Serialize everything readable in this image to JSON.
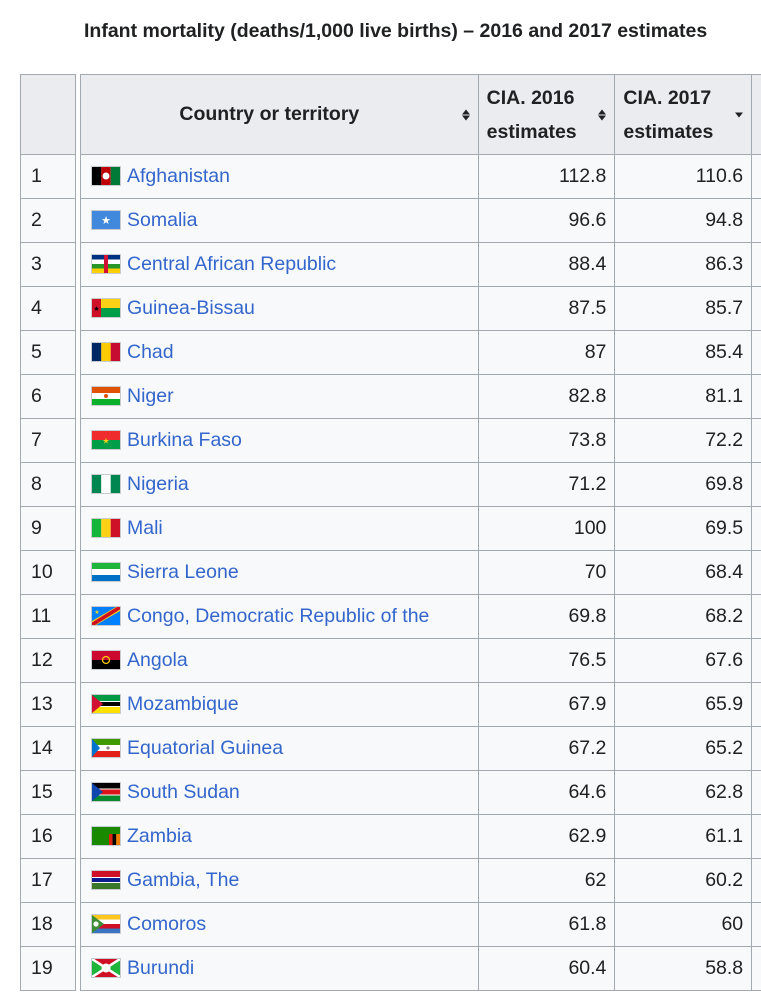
{
  "caption": "Infant mortality (deaths/1,000 live births) – 2016 and 2017 estimates",
  "headers": {
    "country": "Country or territory",
    "c2016_line1": "CIA. 2016",
    "c2016_line2": "estimates",
    "c2017_line1": "CIA. 2017",
    "c2017_line2": "estimates"
  },
  "rows": [
    {
      "rank": "1",
      "country": "Afghanistan",
      "flag": "flag-afghanistan",
      "v2016": "112.8",
      "v2017": "110.6"
    },
    {
      "rank": "2",
      "country": "Somalia",
      "flag": "flag-somalia",
      "v2016": "96.6",
      "v2017": "94.8"
    },
    {
      "rank": "3",
      "country": "Central African Republic",
      "flag": "flag-central-african-republic",
      "v2016": "88.4",
      "v2017": "86.3"
    },
    {
      "rank": "4",
      "country": "Guinea-Bissau",
      "flag": "flag-guinea-bissau",
      "v2016": "87.5",
      "v2017": "85.7"
    },
    {
      "rank": "5",
      "country": "Chad",
      "flag": "flag-chad",
      "v2016": "87",
      "v2017": "85.4"
    },
    {
      "rank": "6",
      "country": "Niger",
      "flag": "flag-niger",
      "v2016": "82.8",
      "v2017": "81.1"
    },
    {
      "rank": "7",
      "country": "Burkina Faso",
      "flag": "flag-burkina-faso",
      "v2016": "73.8",
      "v2017": "72.2"
    },
    {
      "rank": "8",
      "country": "Nigeria",
      "flag": "flag-nigeria",
      "v2016": "71.2",
      "v2017": "69.8"
    },
    {
      "rank": "9",
      "country": "Mali",
      "flag": "flag-mali",
      "v2016": "100",
      "v2017": "69.5"
    },
    {
      "rank": "10",
      "country": "Sierra Leone",
      "flag": "flag-sierra-leone",
      "v2016": "70",
      "v2017": "68.4"
    },
    {
      "rank": "11",
      "country": "Congo, Democratic Republic of the",
      "flag": "flag-dr-congo",
      "v2016": "69.8",
      "v2017": "68.2"
    },
    {
      "rank": "12",
      "country": "Angola",
      "flag": "flag-angola",
      "v2016": "76.5",
      "v2017": "67.6"
    },
    {
      "rank": "13",
      "country": "Mozambique",
      "flag": "flag-mozambique",
      "v2016": "67.9",
      "v2017": "65.9"
    },
    {
      "rank": "14",
      "country": "Equatorial Guinea",
      "flag": "flag-equatorial-guinea",
      "v2016": "67.2",
      "v2017": "65.2"
    },
    {
      "rank": "15",
      "country": "South Sudan",
      "flag": "flag-south-sudan",
      "v2016": "64.6",
      "v2017": "62.8"
    },
    {
      "rank": "16",
      "country": "Zambia",
      "flag": "flag-zambia",
      "v2016": "62.9",
      "v2017": "61.1"
    },
    {
      "rank": "17",
      "country": "Gambia, The",
      "flag": "flag-gambia",
      "v2016": "62",
      "v2017": "60.2"
    },
    {
      "rank": "18",
      "country": "Comoros",
      "flag": "flag-comoros",
      "v2016": "61.8",
      "v2017": "60"
    },
    {
      "rank": "19",
      "country": "Burundi",
      "flag": "flag-burundi",
      "v2016": "60.4",
      "v2017": "58.8"
    }
  ],
  "colors": {
    "link": "#3366cc",
    "header_bg": "#eaecf0",
    "cell_bg": "#f8f9fa",
    "border": "#a2a9b1"
  }
}
